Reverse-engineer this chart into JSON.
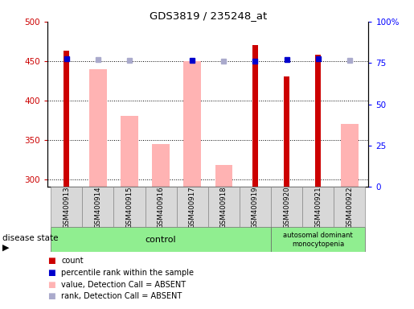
{
  "title": "GDS3819 / 235248_at",
  "samples": [
    "GSM400913",
    "GSM400914",
    "GSM400915",
    "GSM400916",
    "GSM400917",
    "GSM400918",
    "GSM400919",
    "GSM400920",
    "GSM400921",
    "GSM400922"
  ],
  "count_values": [
    463,
    null,
    null,
    null,
    null,
    null,
    470,
    430,
    458,
    null
  ],
  "absent_value_bars": [
    null,
    440,
    380,
    345,
    450,
    318,
    null,
    null,
    null,
    370
  ],
  "percentile_dark": [
    77.5,
    null,
    null,
    null,
    76.5,
    null,
    76.0,
    77.0,
    77.5,
    null
  ],
  "percentile_absent": [
    null,
    77.0,
    76.5,
    null,
    null,
    76.0,
    null,
    null,
    null,
    76.5
  ],
  "ylim_left": [
    290,
    500
  ],
  "ylim_right": [
    0,
    100
  ],
  "yticks_left": [
    300,
    350,
    400,
    450,
    500
  ],
  "yticks_right": [
    0,
    25,
    50,
    75,
    100
  ],
  "grid_values": [
    300,
    350,
    400,
    450
  ],
  "bar_color_dark_red": "#cc0000",
  "bar_color_light_pink": "#ffb3b3",
  "marker_color_dark_blue": "#0000cc",
  "marker_color_light_blue": "#aaaacc",
  "legend_items": [
    "count",
    "percentile rank within the sample",
    "value, Detection Call = ABSENT",
    "rank, Detection Call = ABSENT"
  ],
  "legend_colors": [
    "#cc0000",
    "#0000cc",
    "#ffb3b3",
    "#aaaacc"
  ],
  "group_bg": "#90ee90",
  "sample_box_bg": "#d8d8d8"
}
